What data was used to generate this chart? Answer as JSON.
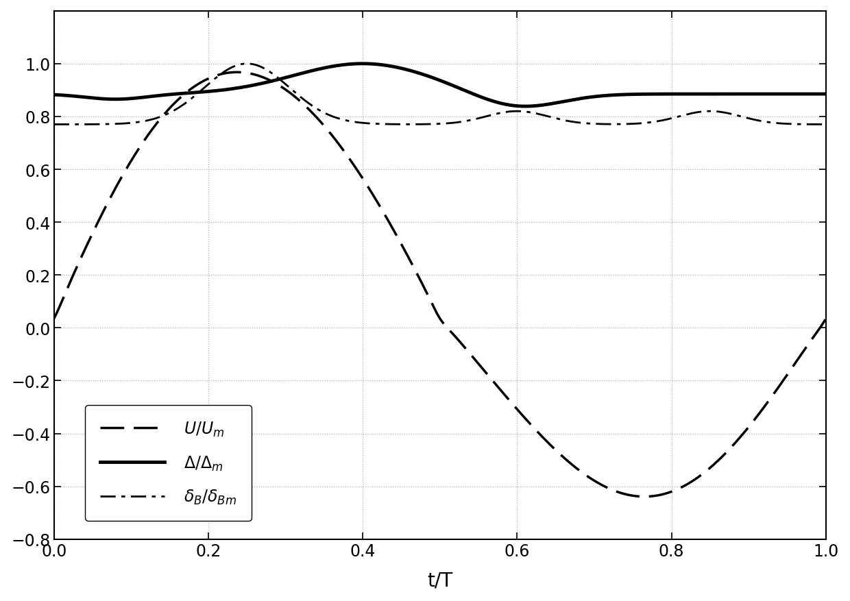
{
  "xlabel": "t/T",
  "xlim": [
    0,
    1
  ],
  "ylim": [
    -0.8,
    1.2
  ],
  "yticks": [
    -0.8,
    -0.6,
    -0.4,
    -0.2,
    0,
    0.2,
    0.4,
    0.6,
    0.8,
    1.0
  ],
  "xticks": [
    0,
    0.2,
    0.4,
    0.6,
    0.8,
    1.0
  ],
  "grid_color": "#b0b0b0",
  "background_color": "#ffffff"
}
